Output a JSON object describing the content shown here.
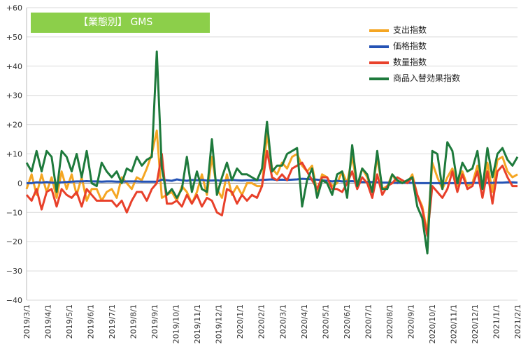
{
  "chart_data": {
    "type": "line",
    "title": "【業態別】 GMS",
    "ylim": [
      -40,
      60
    ],
    "yticks": [
      60,
      50,
      40,
      30,
      20,
      10,
      0,
      -10,
      -20,
      -30,
      -40
    ],
    "ytick_labels": [
      "+60",
      "+50",
      "+40",
      "+30",
      "+20",
      "+10",
      "0",
      "−10",
      "−20",
      "−30",
      "−40"
    ],
    "xlim": [
      "2019/3/1",
      "2021/2/1"
    ],
    "xtick_labels": [
      "2019/3/1",
      "2019/4/1",
      "2019/5/1",
      "2019/6/1",
      "2019/7/1",
      "2019/8/1",
      "2019/9/1",
      "2019/10/1",
      "2019/11/1",
      "2019/12/1",
      "2020/1/1",
      "2020/2/1",
      "2020/3/1",
      "2020/4/1",
      "2020/5/1",
      "2020/6/1",
      "2020/7/1",
      "2020/8/1",
      "2020/9/1",
      "2020/10/1",
      "2020/11/1",
      "2020/12/1",
      "2021/1/1",
      "2021/2/1"
    ],
    "grid": true,
    "legend_position": "top-right",
    "series": [
      {
        "name": "支出指数",
        "color": "#f5a623",
        "values": [
          -2,
          3,
          -4,
          3,
          -3,
          2,
          -5,
          4,
          -2,
          3,
          -4,
          2,
          -6,
          -2,
          -2,
          -6,
          -3,
          -2,
          -5,
          2,
          0,
          -2,
          2,
          1,
          5,
          10,
          18,
          -5,
          -4,
          -3,
          -6,
          -1,
          -3,
          -7,
          -3,
          3,
          -4,
          9,
          -2,
          -5,
          3,
          -4,
          -1,
          -4,
          0,
          0,
          -1,
          -1,
          17,
          5,
          3,
          7,
          5,
          9,
          10,
          6,
          4,
          6,
          -3,
          3,
          2,
          -1,
          0,
          4,
          0,
          9,
          -1,
          5,
          2,
          -3,
          9,
          -2,
          -1,
          3,
          0,
          1,
          0,
          3,
          -4,
          -8,
          -17,
          7,
          2,
          -2,
          2,
          5,
          -1,
          4,
          -1,
          0,
          6,
          -2,
          7,
          -3,
          8,
          9,
          4,
          2,
          3
        ]
      },
      {
        "name": "価格指数",
        "color": "#2553b5",
        "values": [
          0,
          0,
          0.3,
          0.2,
          0.4,
          0.2,
          0.1,
          0.3,
          0.4,
          0.5,
          0.6,
          0.6,
          0.7,
          0.6,
          0.6,
          0.5,
          0.6,
          0.6,
          0.5,
          0.5,
          0.6,
          0.6,
          0.6,
          0.5,
          0.5,
          0.5,
          0.5,
          1.2,
          1.0,
          0.8,
          1.3,
          1.0,
          0.8,
          1.1,
          1.0,
          1.1,
          0.9,
          0.9,
          1.0,
          0.8,
          1.0,
          1.1,
          1.0,
          0.9,
          1.0,
          1.0,
          1.0,
          1.1,
          1.2,
          1.3,
          1.1,
          1.2,
          1.1,
          1.2,
          1.3,
          1.5,
          1.4,
          1.3,
          1.2,
          1.0,
          0.8,
          0.6,
          0.8,
          0.6,
          0.6,
          0.7,
          0.5,
          0.4,
          0.4,
          0.4,
          0.3,
          0.2,
          0.2,
          0.1,
          0.1,
          0.1,
          0.1,
          0.1,
          0,
          0,
          0,
          0,
          0,
          -0.1,
          0,
          0,
          0,
          0,
          0,
          0.1,
          0.1,
          0,
          0.1,
          0.1,
          0.2,
          0.2,
          0.3,
          0.3,
          0.2
        ]
      },
      {
        "name": "数量指数",
        "color": "#e8402a",
        "values": [
          -4,
          -6,
          -2,
          -9,
          -3,
          -2,
          -8,
          -2,
          -4,
          -5,
          -3,
          -8,
          -2,
          -4,
          -6,
          -6,
          -6,
          -6,
          -8,
          -6,
          -10,
          -6,
          -3,
          -3,
          -6,
          -2,
          0,
          10,
          -7,
          -7,
          -6,
          -8,
          -4,
          -7,
          -4,
          -8,
          -5,
          -6,
          -10,
          -11,
          -2,
          -3,
          -7,
          -4,
          -6,
          -4,
          -5,
          -1,
          11,
          2,
          1,
          3,
          1,
          5,
          6,
          7,
          4,
          1,
          -2,
          2,
          2,
          -2,
          -2,
          -3,
          0,
          4,
          -2,
          2,
          0,
          -5,
          3,
          -4,
          -1,
          0,
          2,
          1,
          0,
          2,
          -4,
          -9,
          -18,
          -1,
          -3,
          -5,
          -2,
          4,
          -3,
          3,
          -2,
          -1,
          4,
          -5,
          4,
          -7,
          4,
          6,
          2,
          -1,
          -1
        ]
      },
      {
        "name": "商品入替効果指数",
        "color": "#1e7a3c",
        "values": [
          7,
          4,
          11,
          4,
          11,
          9,
          -3,
          11,
          9,
          4,
          10,
          2,
          11,
          0,
          -1,
          7,
          4,
          2,
          4,
          0,
          5,
          4,
          9,
          6,
          8,
          9,
          45,
          5,
          -4,
          -2,
          -5,
          -2,
          9,
          -3,
          4,
          -2,
          -3,
          15,
          -4,
          2,
          7,
          1,
          5,
          3,
          3,
          2,
          1,
          5,
          21,
          4,
          6,
          6,
          10,
          11,
          12,
          -8,
          1,
          5,
          -5,
          1,
          0,
          -4,
          3,
          4,
          -5,
          13,
          -1,
          5,
          3,
          -3,
          11,
          -2,
          -2,
          3,
          1,
          0,
          1,
          2,
          -8,
          -12,
          -24,
          11,
          10,
          -2,
          14,
          11,
          0,
          7,
          4,
          5,
          11,
          -2,
          12,
          2,
          10,
          12,
          8,
          6,
          9
        ]
      }
    ]
  }
}
